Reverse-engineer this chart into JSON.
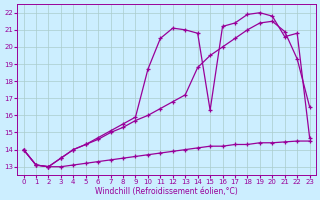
{
  "xlabel": "Windchill (Refroidissement éolien,°C)",
  "bg_color": "#cceeff",
  "line_color": "#990099",
  "grid_color": "#aacccc",
  "xlim": [
    -0.5,
    23.5
  ],
  "ylim": [
    12.5,
    22.5
  ],
  "yticks": [
    13,
    14,
    15,
    16,
    17,
    18,
    19,
    20,
    21,
    22
  ],
  "xticks": [
    0,
    1,
    2,
    3,
    4,
    5,
    6,
    7,
    8,
    9,
    10,
    11,
    12,
    13,
    14,
    15,
    16,
    17,
    18,
    19,
    20,
    21,
    22,
    23
  ],
  "line1_x": [
    0,
    1,
    2,
    3,
    4,
    5,
    6,
    7,
    8,
    9,
    10,
    11,
    12,
    13,
    14,
    15,
    16,
    17,
    18,
    19,
    20,
    21,
    22,
    23
  ],
  "line1_y": [
    14.0,
    13.1,
    13.0,
    13.0,
    13.1,
    13.2,
    13.3,
    13.4,
    13.5,
    13.6,
    13.7,
    13.8,
    13.9,
    14.0,
    14.1,
    14.2,
    14.2,
    14.3,
    14.3,
    14.4,
    14.4,
    14.45,
    14.5,
    14.5
  ],
  "line2_x": [
    0,
    1,
    2,
    3,
    4,
    5,
    6,
    7,
    8,
    9,
    10,
    11,
    12,
    13,
    14,
    15,
    16,
    17,
    18,
    19,
    20,
    21,
    22,
    23
  ],
  "line2_y": [
    14.0,
    13.1,
    13.0,
    13.5,
    14.0,
    14.3,
    14.6,
    15.0,
    15.3,
    15.7,
    16.0,
    16.4,
    16.8,
    17.2,
    18.8,
    19.5,
    20.0,
    20.5,
    21.0,
    21.4,
    21.5,
    20.9,
    19.3,
    16.5
  ],
  "line3_x": [
    0,
    1,
    2,
    3,
    4,
    5,
    6,
    7,
    8,
    9,
    10,
    11,
    12,
    13,
    14,
    15,
    16,
    17,
    18,
    19,
    20,
    21,
    22,
    23
  ],
  "line3_y": [
    14.0,
    13.1,
    13.0,
    13.5,
    14.0,
    14.3,
    14.7,
    15.1,
    15.5,
    15.9,
    18.7,
    20.5,
    21.1,
    21.0,
    20.8,
    16.3,
    21.2,
    21.4,
    21.9,
    22.0,
    21.8,
    20.6,
    20.8,
    14.7
  ]
}
